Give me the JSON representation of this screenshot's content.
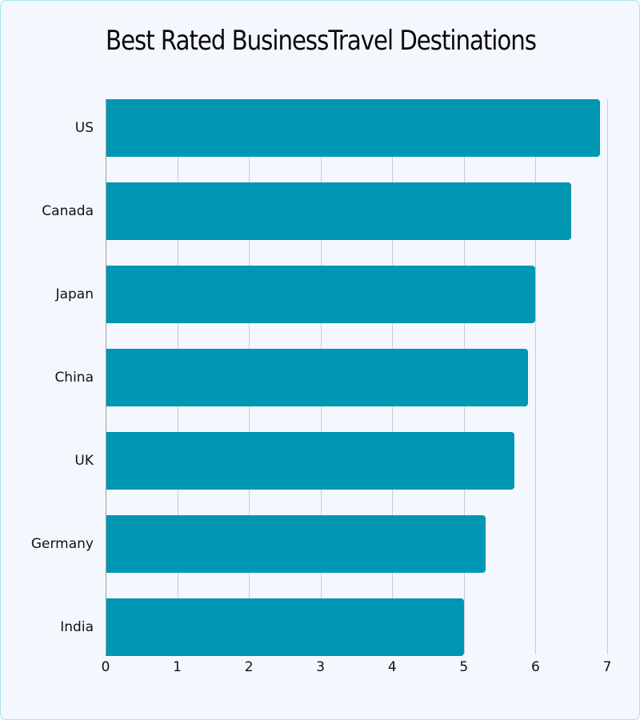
{
  "chart": {
    "title": "Best Rated BusinessTravel Destinations",
    "bar_color": "#0097b2",
    "background_color": "#f4f8fe",
    "border_color": "#a9e4ee"
  },
  "chart_data": {
    "type": "bar",
    "orientation": "horizontal",
    "title": "Best Rated BusinessTravel Destinations",
    "xlabel": "",
    "ylabel": "",
    "categories": [
      "US",
      "Canada",
      "Japan",
      "China",
      "UK",
      "Germany",
      "India"
    ],
    "values": [
      6.9,
      6.5,
      6.0,
      5.9,
      5.7,
      5.3,
      5.0
    ],
    "xlim": [
      0,
      7
    ],
    "xticks": [
      "0",
      "1",
      "2",
      "3",
      "4",
      "5",
      "6",
      "7"
    ],
    "grid": true,
    "legend": null
  }
}
